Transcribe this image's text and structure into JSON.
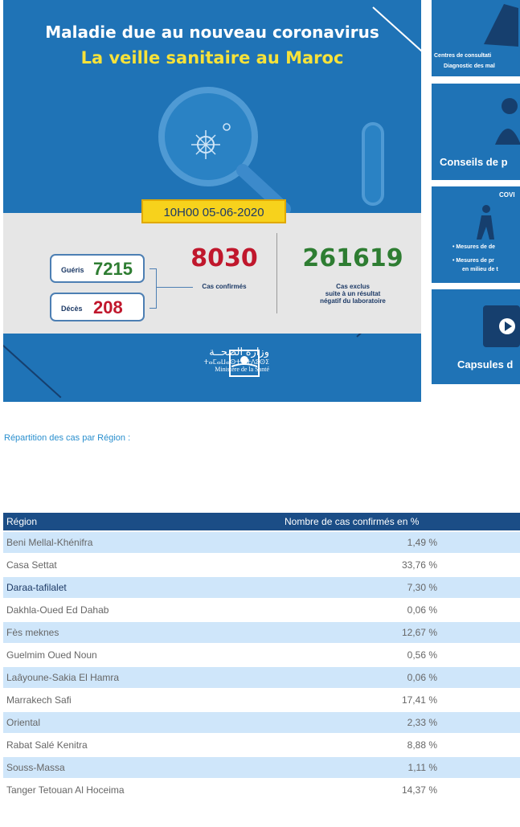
{
  "banner": {
    "title": "Maladie due au nouveau coronavirus",
    "subtitle": "La veille sanitaire au Maroc",
    "datetime": "10H00  05-06-2020",
    "gueris_label": "Guéris",
    "gueris_value": "7215",
    "deces_label": "Décès",
    "deces_value": "208",
    "confirmed_value": "8030",
    "confirmed_label": "Cas confirmés",
    "excluded_value": "261619",
    "excluded_label_1": "Cas exclus",
    "excluded_label_2": "suite à un résultat",
    "excluded_label_3": "négatif du laboratoire",
    "ministry_ar": "وزارة الصحــة",
    "ministry_tifinagh": "ⵜⴰⵎⴰⵡⴰⵙⵜ ⵏ ⵜⴷⵓⵙⵉ",
    "ministry_fr": "Ministère de la Santé"
  },
  "side_cards": [
    {
      "line1": "Centres de consultati",
      "line2": "Diagnostic des mal"
    },
    {
      "line1": "Conseils de p"
    },
    {
      "line1": "COVI",
      "line2": "• Mesures de de",
      "line3": "• Mesures de pr",
      "line4": "en milieu de t"
    },
    {
      "line1": "Capsules d"
    }
  ],
  "intro": "Répartition des cas par Région :",
  "table": {
    "headers": [
      "Région",
      "Nombre de cas confirmés en %"
    ],
    "rows": [
      {
        "region": "Beni Mellal-Khénifra",
        "value": "1,49 %"
      },
      {
        "region": "Casa Settat",
        "value": "33,76 %"
      },
      {
        "region": "Daraa-tafilalet",
        "value": "7,30 %"
      },
      {
        "region": "Dakhla-Oued Ed Dahab",
        "value": "0,06 %"
      },
      {
        "region": "Fès meknes",
        "value": "12,67 %"
      },
      {
        "region": "Guelmim Oued Noun",
        "value": "0,56 %"
      },
      {
        "region": "Laâyoune-Sakia El Hamra",
        "value": "0,06 %"
      },
      {
        "region": "Marrakech Safi",
        "value": "17,41 %"
      },
      {
        "region": "Oriental",
        "value": "2,33 %"
      },
      {
        "region": "Rabat Salé Kenitra",
        "value": "8,88 %"
      },
      {
        "region": "Souss-Massa",
        "value": "1,11 %"
      },
      {
        "region": "Tanger Tetouan Al Hoceima",
        "value": "14,37 %"
      }
    ]
  },
  "colors": {
    "banner_blue": "#1f73b6",
    "table_header": "#1b4d86",
    "row_alt": "#cfe6fa",
    "green": "#2e7d32",
    "red": "#c0172c",
    "date_yellow": "#f7d21c"
  }
}
